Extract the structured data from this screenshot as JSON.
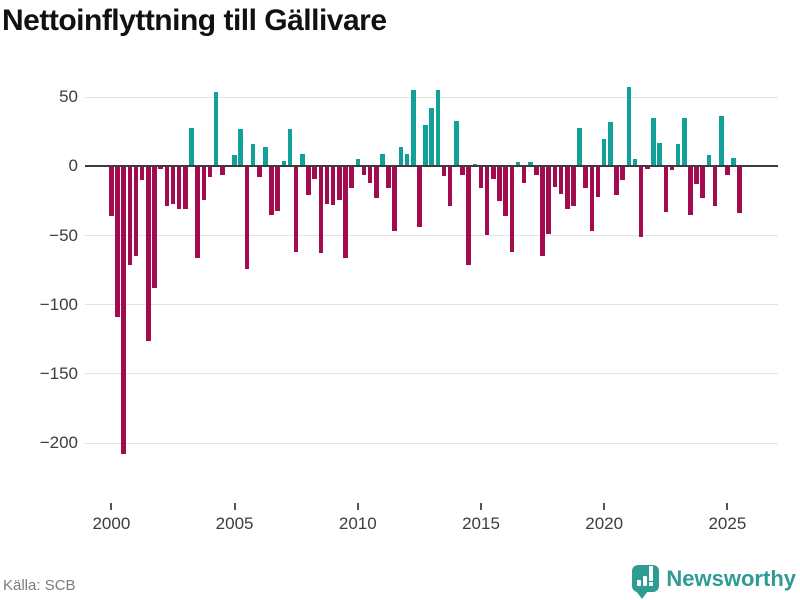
{
  "title": "Nettoinflyttning till Gällivare",
  "source_label": "Källa: SCB",
  "brand": {
    "name": "Newsworthy",
    "logo": "newsworthy-badge"
  },
  "colors": {
    "positive": "#12a19a",
    "negative": "#a20b4e",
    "axis": "#3b3b40",
    "gridline": "#e2e2e2",
    "title_text": "#111111",
    "tick_text": "#3d3d3d",
    "source_text": "#7d7d7d",
    "brand_teal": "#2e9c94"
  },
  "y_axis": {
    "tick_labels": [
      "50",
      "0",
      "−50",
      "−100",
      "−150",
      "−200"
    ],
    "tick_values": [
      50,
      0,
      -50,
      -100,
      -150,
      -200
    ]
  },
  "x_axis": {
    "tick_labels": [
      "2000",
      "2005",
      "2010",
      "2015",
      "2020",
      "2025"
    ]
  },
  "chart_data": {
    "type": "bar",
    "title": "Nettoinflyttning till Gällivare",
    "xlabel": "",
    "ylabel": "",
    "source": "Källa: SCB",
    "x_start": "2000Q1",
    "x_end": "2025Q3",
    "frequency": "quarterly",
    "ylim": [
      -245,
      58
    ],
    "grid": "horizontal",
    "legend": "none",
    "series": [
      {
        "name": "Nettoinflyttning",
        "values": [
          -36,
          -109,
          -208,
          -71,
          -65,
          -10,
          -126,
          -88,
          -2,
          -29,
          -27,
          -31,
          -31,
          28,
          -66,
          -24,
          -8,
          54,
          -6,
          0,
          8,
          27,
          -74,
          16,
          -8,
          14,
          -35,
          -32,
          4,
          27,
          -62,
          9,
          -21,
          -9,
          -63,
          -27,
          -28,
          -24,
          -66,
          -16,
          5,
          -6,
          -12,
          -23,
          9,
          -16,
          -47,
          14,
          9,
          55,
          -44,
          30,
          42,
          55,
          -7,
          -29,
          33,
          -6,
          -71,
          2,
          -16,
          -50,
          -9,
          -25,
          -36,
          -62,
          3,
          -12,
          3,
          -6,
          -65,
          -49,
          -15,
          -20,
          -31,
          -29,
          28,
          -16,
          -47,
          -22,
          20,
          32,
          -21,
          -10,
          57,
          5,
          -51,
          -2,
          35,
          17,
          -33,
          -3,
          16,
          35,
          -35,
          -13,
          -23,
          8,
          -29,
          36,
          -6,
          6,
          -34
        ]
      }
    ]
  }
}
